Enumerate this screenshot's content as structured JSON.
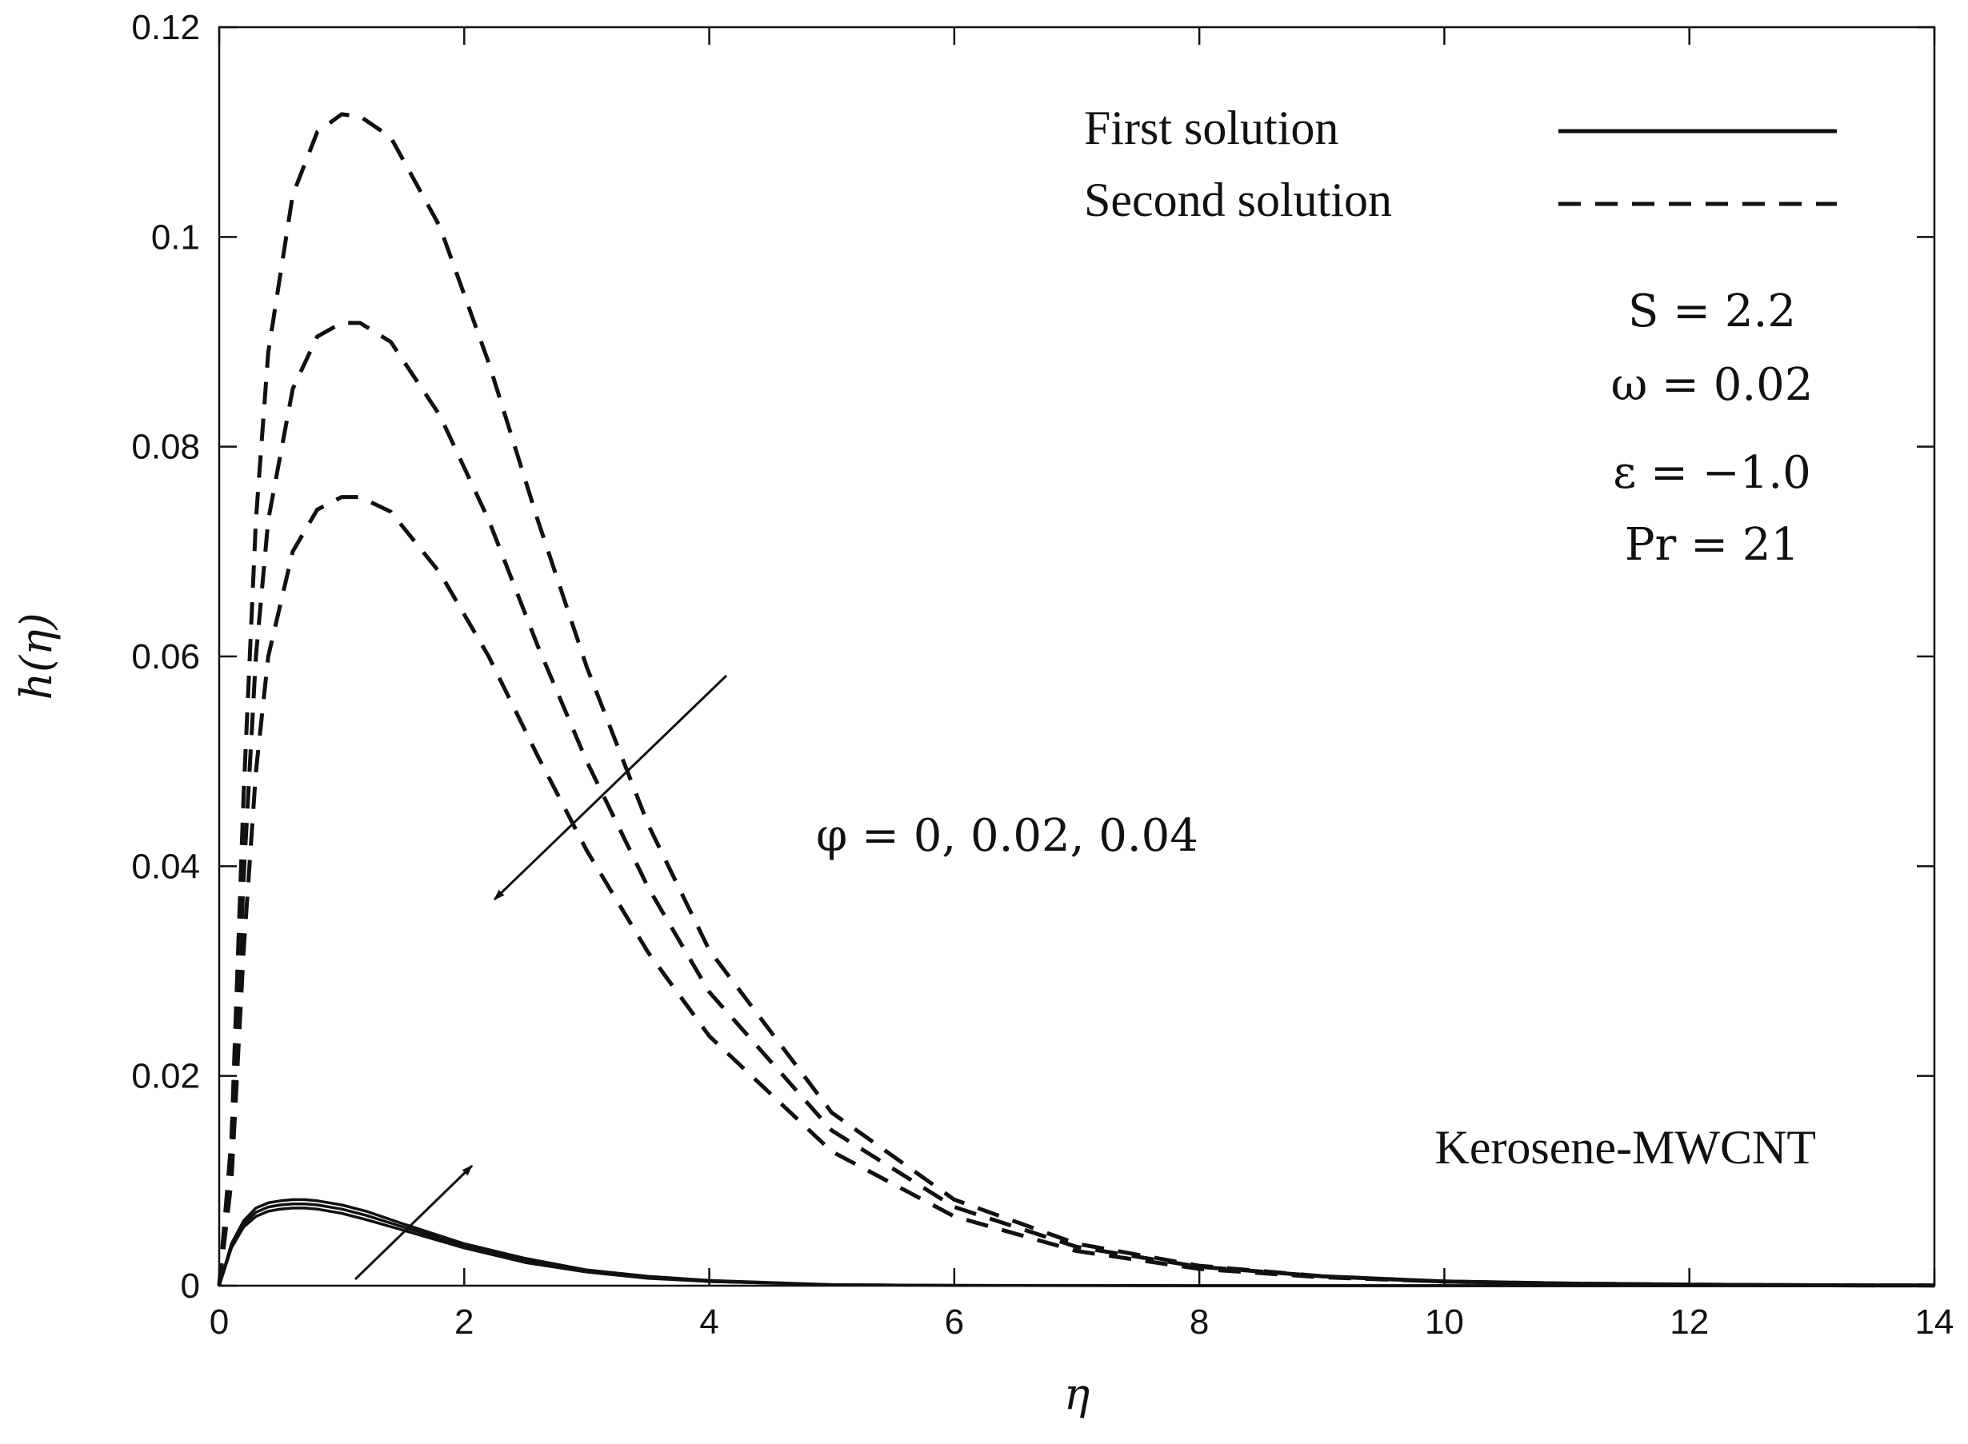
{
  "chart_data": {
    "type": "line",
    "title": "",
    "xlabel": "η",
    "ylabel": "h(η)",
    "xlim": [
      0,
      14
    ],
    "ylim": [
      0,
      0.12
    ],
    "xticks": [
      0,
      2,
      4,
      6,
      8,
      10,
      12,
      14
    ],
    "xtick_labels": [
      "0",
      "2",
      "4",
      "6",
      "8",
      "10",
      "12",
      "14"
    ],
    "yticks": [
      0,
      0.02,
      0.04,
      0.06,
      0.08,
      0.1,
      0.12
    ],
    "ytick_labels": [
      "0",
      "0.02",
      "0.04",
      "0.06",
      "0.08",
      "0.1",
      "0.12"
    ],
    "grid": false,
    "legend": {
      "position": "top-right",
      "entries": [
        {
          "label": "First solution",
          "style": "solid"
        },
        {
          "label": "Second solution",
          "style": "dashed"
        }
      ]
    },
    "parameters": [
      "S = 2.2",
      "ω = 0.02",
      "ε = −1.0",
      "Pr = 21"
    ],
    "annotations": {
      "phi_label": "φ = 0, 0.02, 0.04",
      "material": "Kerosene-MWCNT"
    },
    "series": [
      {
        "name": "First solution, φ = 0",
        "style": "solid",
        "x": [
          0,
          0.1,
          0.2,
          0.3,
          0.4,
          0.5,
          0.6,
          0.7,
          0.8,
          1.0,
          1.2,
          1.5,
          2.0,
          2.5,
          3.0,
          3.5,
          4.0,
          5.0,
          6.0,
          8.0,
          10.0,
          14.0
        ],
        "y": [
          0,
          0.0036,
          0.0056,
          0.0066,
          0.0071,
          0.0073,
          0.0074,
          0.0074,
          0.0073,
          0.0069,
          0.0063,
          0.0053,
          0.0036,
          0.0022,
          0.0013,
          0.0007,
          0.0004,
          0.0001,
          3e-05,
          0,
          0,
          0
        ]
      },
      {
        "name": "First solution, φ = 0.02",
        "style": "solid",
        "x": [
          0,
          0.1,
          0.2,
          0.3,
          0.4,
          0.5,
          0.6,
          0.7,
          0.8,
          1.0,
          1.2,
          1.5,
          2.0,
          2.5,
          3.0,
          3.5,
          4.0,
          5.0,
          6.0,
          8.0,
          10.0,
          14.0
        ],
        "y": [
          0,
          0.0038,
          0.0059,
          0.007,
          0.0075,
          0.0077,
          0.0078,
          0.0078,
          0.0077,
          0.0073,
          0.0067,
          0.0056,
          0.0038,
          0.0024,
          0.0014,
          0.0008,
          0.0004,
          0.0001,
          3e-05,
          0,
          0,
          0
        ]
      },
      {
        "name": "First solution, φ = 0.04",
        "style": "solid",
        "x": [
          0,
          0.1,
          0.2,
          0.3,
          0.4,
          0.5,
          0.6,
          0.7,
          0.8,
          1.0,
          1.2,
          1.5,
          2.0,
          2.5,
          3.0,
          3.5,
          4.0,
          5.0,
          6.0,
          8.0,
          10.0,
          14.0
        ],
        "y": [
          0,
          0.004,
          0.0062,
          0.0074,
          0.0079,
          0.0081,
          0.0082,
          0.0082,
          0.0081,
          0.0077,
          0.0071,
          0.0059,
          0.004,
          0.0026,
          0.0015,
          0.0009,
          0.0005,
          0.0001,
          3e-05,
          0,
          0,
          0
        ]
      },
      {
        "name": "Second solution, φ = 0",
        "style": "dashed",
        "x": [
          0,
          0.1,
          0.2,
          0.3,
          0.4,
          0.6,
          0.8,
          1.0,
          1.15,
          1.4,
          1.8,
          2.2,
          2.6,
          3.0,
          3.5,
          4.0,
          5.0,
          6.0,
          7.0,
          8.0,
          9.0,
          10.0,
          11.0,
          12.0,
          13.0,
          14.0
        ],
        "y": [
          0,
          0.014,
          0.047,
          0.073,
          0.089,
          0.104,
          0.11,
          0.1117,
          0.1115,
          0.1095,
          0.101,
          0.088,
          0.073,
          0.059,
          0.044,
          0.032,
          0.0165,
          0.0082,
          0.004,
          0.0019,
          0.0009,
          0.0004,
          0.0002,
          0.0001,
          4e-05,
          2e-05
        ]
      },
      {
        "name": "Second solution, φ = 0.02",
        "style": "dashed",
        "x": [
          0,
          0.1,
          0.2,
          0.3,
          0.4,
          0.6,
          0.8,
          1.0,
          1.15,
          1.4,
          1.8,
          2.2,
          2.6,
          3.0,
          3.5,
          4.0,
          5.0,
          6.0,
          7.0,
          8.0,
          9.0,
          10.0,
          11.0,
          12.0,
          13.0,
          14.0
        ],
        "y": [
          0,
          0.012,
          0.039,
          0.06,
          0.073,
          0.0855,
          0.0905,
          0.0918,
          0.0918,
          0.09,
          0.083,
          0.073,
          0.061,
          0.05,
          0.038,
          0.028,
          0.0148,
          0.0075,
          0.0037,
          0.0018,
          0.0009,
          0.0004,
          0.0002,
          0.0001,
          4e-05,
          2e-05
        ]
      },
      {
        "name": "Second solution, φ = 0.04",
        "style": "dashed",
        "x": [
          0,
          0.1,
          0.2,
          0.3,
          0.4,
          0.6,
          0.8,
          1.0,
          1.15,
          1.4,
          1.8,
          2.2,
          2.6,
          3.0,
          3.5,
          4.0,
          5.0,
          6.0,
          7.0,
          8.0,
          9.0,
          10.0,
          11.0,
          12.0,
          13.0,
          14.0
        ],
        "y": [
          0,
          0.01,
          0.032,
          0.049,
          0.06,
          0.07,
          0.074,
          0.0752,
          0.0752,
          0.0738,
          0.068,
          0.06,
          0.0505,
          0.0415,
          0.0318,
          0.0238,
          0.0128,
          0.0066,
          0.0033,
          0.0016,
          0.0008,
          0.0004,
          0.0002,
          0.0001,
          4e-05,
          2e-05
        ]
      }
    ]
  }
}
